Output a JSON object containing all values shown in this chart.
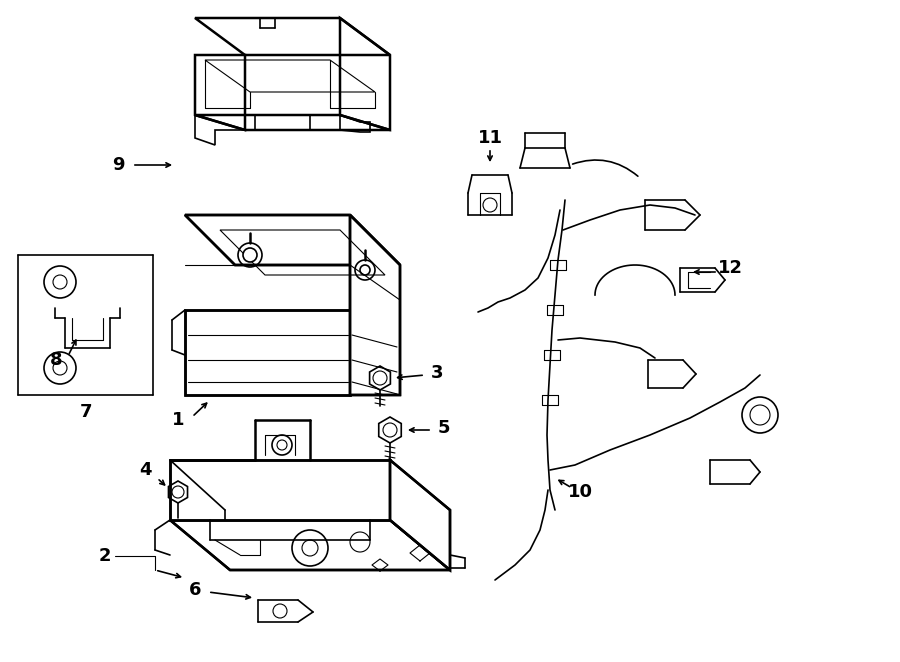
{
  "background_color": "#ffffff",
  "line_color": "#000000",
  "figsize": [
    9.0,
    6.62
  ],
  "dpi": 100
}
